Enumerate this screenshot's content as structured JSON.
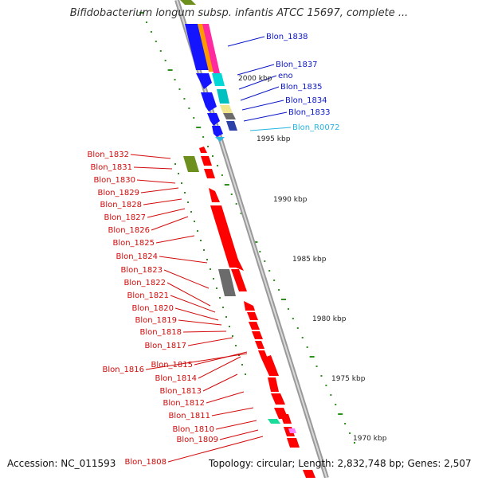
{
  "title": "Bifidobacterium longum subsp. infantis ATCC 15697, complete ...",
  "footer": {
    "accession": "Accession: NC_011593",
    "summary": "Topology: circular; Length: 2,832,748 bp; Genes: 2,507"
  },
  "colors": {
    "background": "#ffffff",
    "backbone": "#9a9a9a",
    "forward_label": "#0b17c9",
    "reverse_label": "#d20a0a",
    "rna_label": "#27b4e0",
    "tick": "#2f8f1f",
    "cds": "#ff0000",
    "cds_forward": "#1414ff",
    "pseudo": "#6b6b6b"
  },
  "ruler": [
    {
      "label": "2000 kbp"
    },
    {
      "label": "1995 kbp"
    },
    {
      "label": "1990 kbp"
    },
    {
      "label": "1985 kbp"
    },
    {
      "label": "1980 kbp"
    },
    {
      "label": "1975 kbp"
    },
    {
      "label": "1970 kbp"
    }
  ],
  "forward_genes": [
    {
      "label": "Blon_1838",
      "type": "cds"
    },
    {
      "label": "Blon_1837",
      "type": "cds"
    },
    {
      "label": "eno",
      "type": "cds"
    },
    {
      "label": "Blon_1835",
      "type": "cds"
    },
    {
      "label": "Blon_1834",
      "type": "cds"
    },
    {
      "label": "Blon_1833",
      "type": "cds"
    },
    {
      "label": "Blon_R0072",
      "type": "rna"
    }
  ],
  "reverse_genes": [
    {
      "label": "Blon_1832"
    },
    {
      "label": "Blon_1831"
    },
    {
      "label": "Blon_1830"
    },
    {
      "label": "Blon_1829"
    },
    {
      "label": "Blon_1828"
    },
    {
      "label": "Blon_1827"
    },
    {
      "label": "Blon_1826"
    },
    {
      "label": "Blon_1825"
    },
    {
      "label": "Blon_1824"
    },
    {
      "label": "Blon_1823"
    },
    {
      "label": "Blon_1822"
    },
    {
      "label": "Blon_1821"
    },
    {
      "label": "Blon_1820"
    },
    {
      "label": "Blon_1819"
    },
    {
      "label": "Blon_1818"
    },
    {
      "label": "Blon_1817"
    },
    {
      "label": "Blon_1816"
    },
    {
      "label": "Blon_1815"
    },
    {
      "label": "Blon_1814"
    },
    {
      "label": "Blon_1813"
    },
    {
      "label": "Blon_1812"
    },
    {
      "label": "Blon_1811"
    },
    {
      "label": "Blon_1810"
    },
    {
      "label": "Blon_1809"
    },
    {
      "label": "Blon_1808"
    }
  ]
}
